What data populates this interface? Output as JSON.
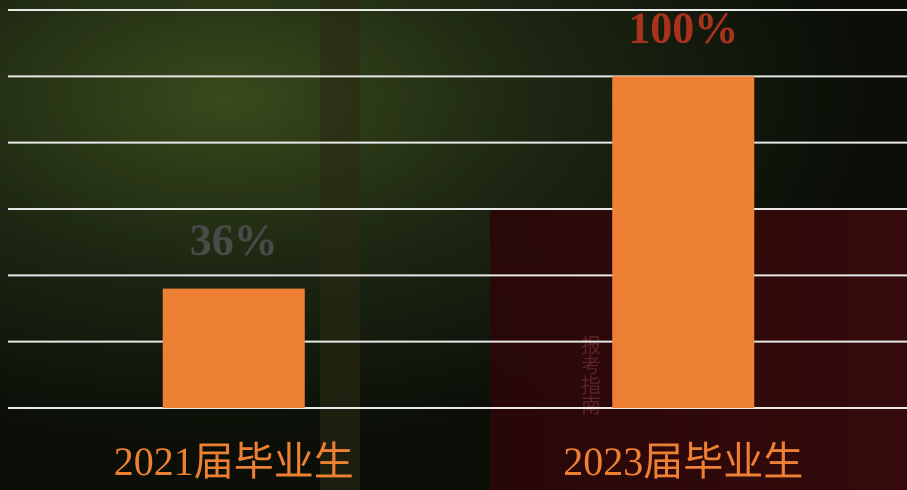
{
  "chart_data": {
    "type": "bar",
    "categories": [
      "2021届毕业生",
      "2023届毕业生"
    ],
    "values": [
      36,
      100
    ],
    "value_labels": [
      "36%",
      "100%"
    ],
    "value_label_colors": [
      "#4a4a48",
      "#a8321c"
    ],
    "color": "#ee8034",
    "category_color": "#ee8034",
    "ylim": [
      0,
      120
    ],
    "yticks": [
      0,
      20,
      40,
      60,
      80,
      100,
      120
    ],
    "grid": true
  },
  "background": {
    "text": "报考指南"
  }
}
